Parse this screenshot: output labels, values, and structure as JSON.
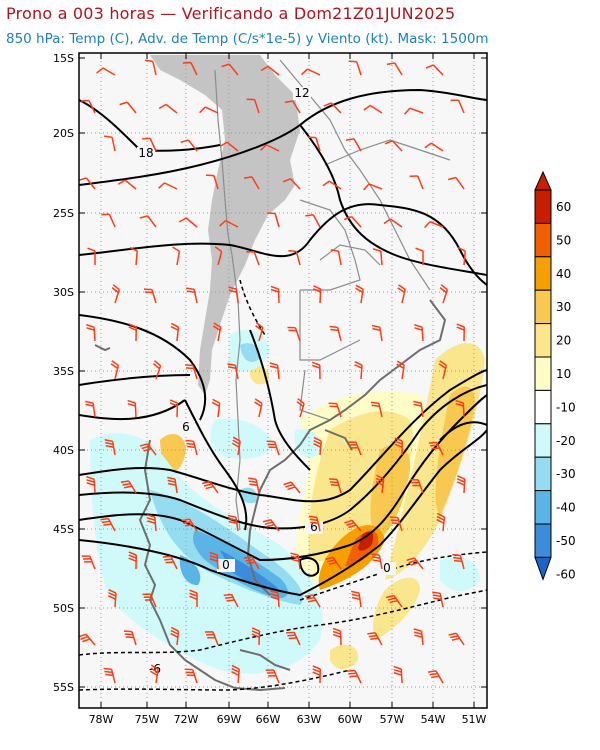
{
  "header": {
    "title": "Prono a 003 horas — Verificando a Dom21Z01JUN2025",
    "subtitle": "850 hPa: Temp (C), Adv. de Temp (C/s*1e-5) y Viento (kt). Mask: 1500m"
  },
  "map": {
    "lat_labels": [
      "15S",
      "20S",
      "25S",
      "30S",
      "35S",
      "40S",
      "45S",
      "50S",
      "55S"
    ],
    "lon_labels": [
      "78W",
      "75W",
      "72W",
      "69W",
      "66W",
      "63W",
      "60W",
      "57W",
      "54W",
      "51W"
    ],
    "contour_labels": [
      "12",
      "18",
      "6",
      "6",
      "0",
      "0",
      "-6"
    ]
  },
  "colorbar": {
    "labels": [
      "60",
      "50",
      "40",
      "30",
      "20",
      "10",
      "-10",
      "-20",
      "-30",
      "-40",
      "-50",
      "-60"
    ],
    "colors": [
      "#c81e00",
      "#f06000",
      "#f5a000",
      "#f8c850",
      "#fae68c",
      "#fffcc8",
      "#ffffff",
      "#d0fafa",
      "#96dcf0",
      "#5ab4e6",
      "#3c8cdc",
      "#1e64c8"
    ]
  },
  "colors": {
    "title": "#b0141c",
    "subtitle": "#1f7fbf",
    "barb": "#ff3c14",
    "terrain_mask": "#c4c4c4",
    "grid": "#999999"
  }
}
